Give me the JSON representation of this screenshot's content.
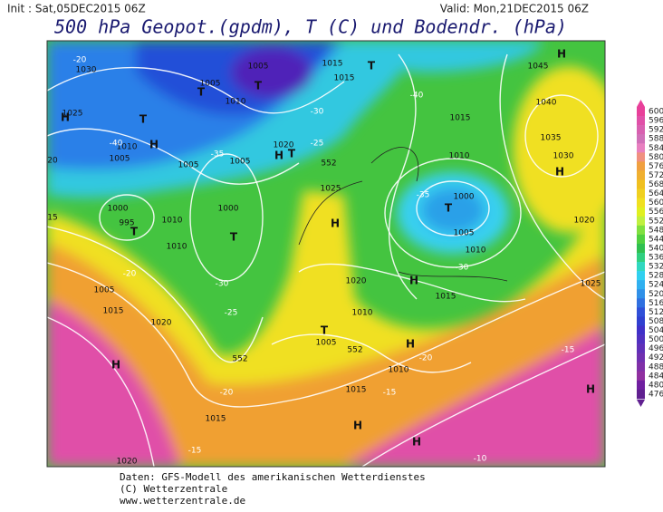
{
  "header": {
    "init": "Init : Sat,05DEC2015 06Z",
    "valid": "Valid: Mon,21DEC2015 06Z",
    "title": "500 hPa Geopot.(gpdm), T (C) und Bodendr. (hPa)"
  },
  "colorbar": {
    "labels": [
      600,
      596,
      592,
      588,
      584,
      580,
      576,
      572,
      568,
      564,
      560,
      556,
      552,
      548,
      544,
      540,
      536,
      532,
      528,
      524,
      520,
      516,
      512,
      508,
      504,
      500,
      496,
      492,
      488,
      484,
      480,
      476
    ],
    "colors": [
      "#e8409a",
      "#e050a8",
      "#d860b0",
      "#d070b8",
      "#e880c0",
      "#f09080",
      "#f0a040",
      "#f0b030",
      "#f0c020",
      "#f0d020",
      "#f0e020",
      "#e0f020",
      "#c0f040",
      "#80e040",
      "#50d040",
      "#30c050",
      "#30d080",
      "#30d8c0",
      "#30d0f0",
      "#30b0f0",
      "#3090e8",
      "#3070e0",
      "#3050d8",
      "#3040d0",
      "#4030c8",
      "#5030c0",
      "#6030b8",
      "#7030b0",
      "#8030a8",
      "#9030a0",
      "#7020a0",
      "#602090"
    ]
  },
  "map_labels": [
    "1030",
    "1025",
    "H",
    "1010",
    "1005",
    "1005",
    "T",
    "T",
    "1015",
    "1015",
    "T",
    "1045",
    "H",
    "1040",
    "1035",
    "1030",
    "H",
    "1010",
    "1005",
    "T",
    "H",
    "1005",
    "1005",
    "1020",
    "H",
    "T",
    "1025",
    "H",
    "1000",
    "T",
    "1000",
    "995",
    "T",
    "1010",
    "1010",
    "1015",
    "1010",
    "1000",
    "T",
    "1005",
    "1010",
    "1020",
    "H",
    "1015",
    "1010",
    "1020",
    "1005",
    "1015",
    "1020",
    "T",
    "1005",
    "H",
    "H",
    "1010",
    "1015",
    "1015",
    "H",
    "H",
    "H",
    "1020",
    "1025",
    "552",
    "552",
    "552",
    "-20",
    "-40",
    "-30",
    "-35",
    "-25",
    "-20",
    "-15",
    "-15",
    "-15",
    "-10",
    "-20",
    "-30",
    "-35",
    "-25",
    "-30",
    "-20",
    "-40",
    "20",
    "15"
  ],
  "footer": [
    "Daten: GFS-Modell des amerikanischen Wetterdienstes",
    "(C) Wetterzentrale",
    "www.wetterzentrale.de"
  ]
}
